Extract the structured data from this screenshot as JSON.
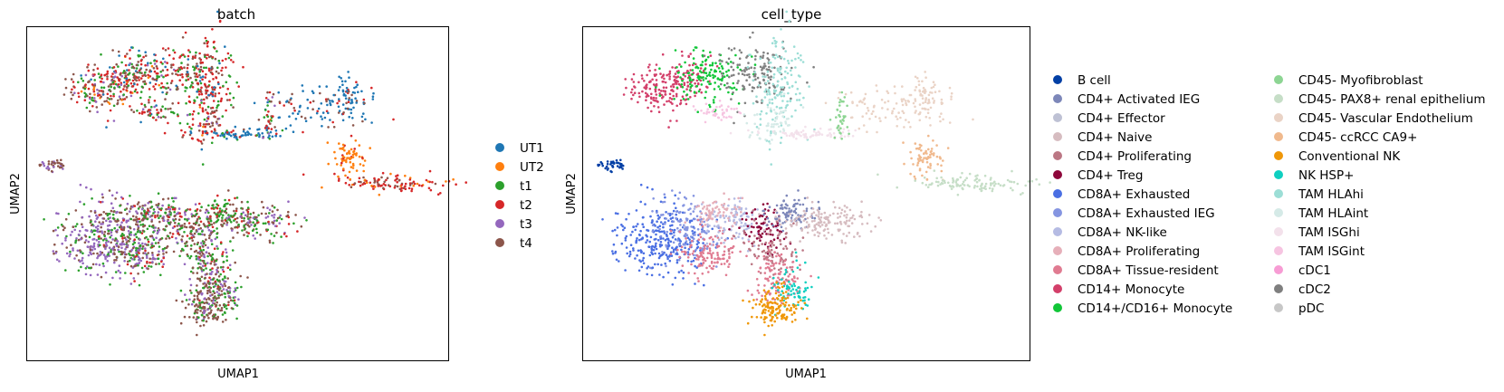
{
  "chart_data": [
    {
      "type": "scatter",
      "title": "batch",
      "xlabel": "UMAP1",
      "ylabel": "UMAP2",
      "grid": false,
      "legend_position": "right",
      "legend": [
        {
          "name": "UT1",
          "color": "#1f77b4"
        },
        {
          "name": "UT2",
          "color": "#ff7f0e"
        },
        {
          "name": "t1",
          "color": "#2ca02c"
        },
        {
          "name": "t2",
          "color": "#d62728"
        },
        {
          "name": "t3",
          "color": "#9467bd"
        },
        {
          "name": "t4",
          "color": "#8c564b"
        }
      ]
    },
    {
      "type": "scatter",
      "title": "cell_type",
      "xlabel": "UMAP1",
      "ylabel": "UMAP2",
      "grid": false,
      "legend_position": "right",
      "legend": [
        {
          "name": "B cell",
          "color": "#023fa5"
        },
        {
          "name": "CD4+ Activated IEG",
          "color": "#7d87b9"
        },
        {
          "name": "CD4+ Effector",
          "color": "#bec1d4"
        },
        {
          "name": "CD4+ Naive",
          "color": "#d6bcc0"
        },
        {
          "name": "CD4+ Proliferating",
          "color": "#bb7784"
        },
        {
          "name": "CD4+ Treg",
          "color": "#8e063b"
        },
        {
          "name": "CD8A+ Exhausted",
          "color": "#4a6fe3"
        },
        {
          "name": "CD8A+ Exhausted IEG",
          "color": "#8595e1"
        },
        {
          "name": "CD8A+ NK-like",
          "color": "#b5bbe3"
        },
        {
          "name": "CD8A+ Proliferating",
          "color": "#e6afb9"
        },
        {
          "name": "CD8A+ Tissue-resident",
          "color": "#e07b91"
        },
        {
          "name": "CD14+ Monocyte",
          "color": "#d33f6a"
        },
        {
          "name": "CD14+/CD16+ Monocyte",
          "color": "#11c638"
        },
        {
          "name": "CD45- Myofibroblast",
          "color": "#8dd593"
        },
        {
          "name": "CD45- PAX8+ renal epithelium",
          "color": "#c6dec7"
        },
        {
          "name": "CD45- Vascular Endothelium",
          "color": "#ead3c6"
        },
        {
          "name": "CD45- ccRCC CA9+",
          "color": "#f0b98d"
        },
        {
          "name": "Conventional NK",
          "color": "#ef9708"
        },
        {
          "name": "NK HSP+",
          "color": "#0fcfc0"
        },
        {
          "name": "TAM HLAhi",
          "color": "#9cded6"
        },
        {
          "name": "TAM HLAint",
          "color": "#d5eae7"
        },
        {
          "name": "TAM ISGhi",
          "color": "#f3e1eb"
        },
        {
          "name": "TAM ISGint",
          "color": "#f6c4e1"
        },
        {
          "name": "cDC1",
          "color": "#f79cd4"
        },
        {
          "name": "cDC2",
          "color": "#7f7f7f"
        },
        {
          "name": "pDC",
          "color": "#c7c7c7"
        }
      ]
    }
  ]
}
